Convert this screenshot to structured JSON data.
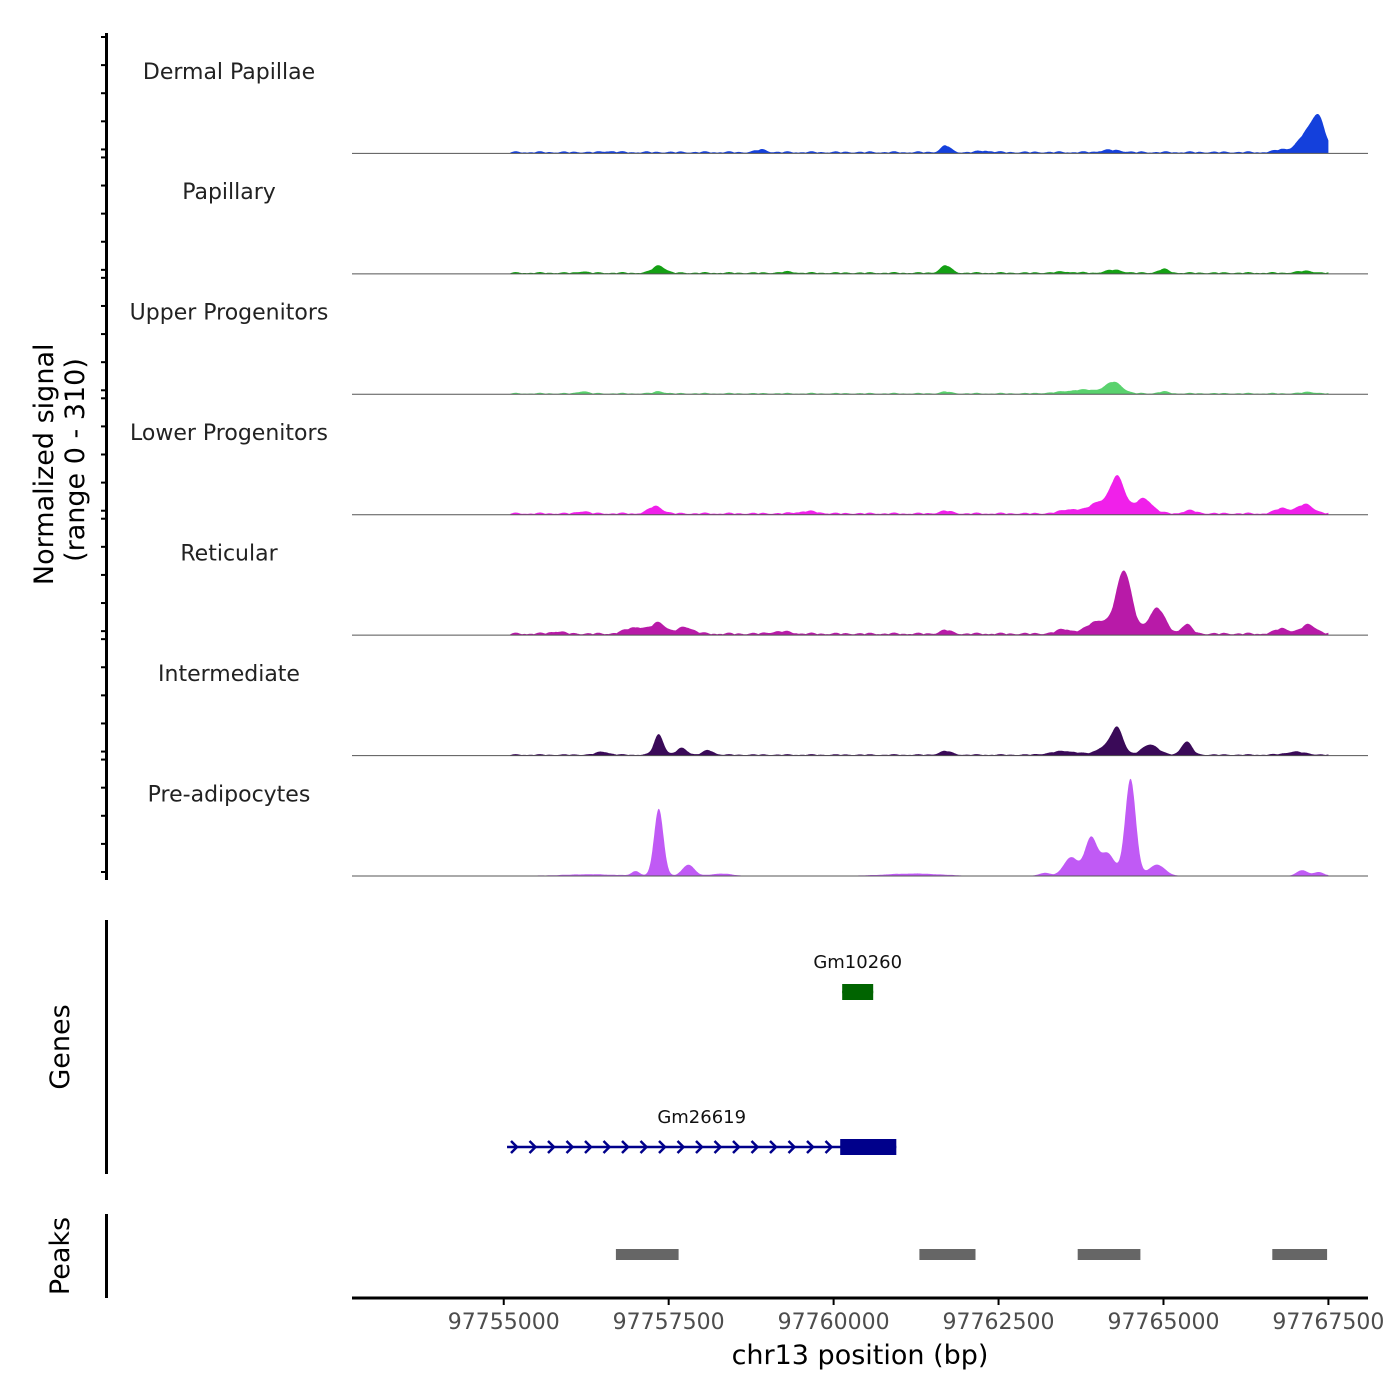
{
  "chart_data": {
    "type": "area",
    "title": "",
    "xlabel": "chr13 position (bp)",
    "xlim": [
      97752700,
      97768100
    ],
    "x_ticks": [
      97755000,
      97757500,
      97760000,
      97762500,
      97765000,
      97767500
    ],
    "x_tick_labels": [
      "97755000",
      "97757500",
      "97760000",
      "97762500",
      "97765000",
      "97767500"
    ],
    "signal_ylabel_line1": "Normalized signal",
    "signal_ylabel_line2": "(range 0 - 310)",
    "ylim": [
      0,
      310
    ],
    "signal_extent": [
      97755100,
      97767500
    ],
    "tracks": [
      {
        "name": "Dermal Papillae",
        "color": "#1440dc",
        "baseline": 6,
        "peaks": [
          [
            97756600,
            3,
            80
          ],
          [
            97758900,
            7,
            80
          ],
          [
            97761700,
            18,
            70
          ],
          [
            97762300,
            4,
            100
          ],
          [
            97764200,
            6,
            150
          ],
          [
            97766800,
            8,
            100
          ],
          [
            97767150,
            45,
            120
          ],
          [
            97767350,
            90,
            100
          ]
        ]
      },
      {
        "name": "Papillary",
        "color": "#14a014",
        "baseline": 5,
        "peaks": [
          [
            97756200,
            4,
            60
          ],
          [
            97757350,
            20,
            90
          ],
          [
            97759300,
            3,
            100
          ],
          [
            97761700,
            20,
            80
          ],
          [
            97763500,
            3,
            150
          ],
          [
            97764250,
            8,
            120
          ],
          [
            97765000,
            10,
            80
          ],
          [
            97767150,
            5,
            120
          ]
        ]
      },
      {
        "name": "Upper Progenitors",
        "color": "#5ad26e",
        "baseline": 4,
        "peaks": [
          [
            97756200,
            6,
            70
          ],
          [
            97757350,
            6,
            70
          ],
          [
            97761700,
            5,
            70
          ],
          [
            97763800,
            10,
            300
          ],
          [
            97764250,
            28,
            120
          ],
          [
            97765000,
            5,
            80
          ],
          [
            97767200,
            4,
            100
          ]
        ]
      },
      {
        "name": "Lower Progenitors",
        "color": "#f020ea",
        "baseline": 6,
        "peaks": [
          [
            97756200,
            6,
            80
          ],
          [
            97757300,
            20,
            100
          ],
          [
            97759600,
            6,
            150
          ],
          [
            97761700,
            7,
            90
          ],
          [
            97763600,
            12,
            150
          ],
          [
            97764000,
            30,
            120
          ],
          [
            97764300,
            100,
            110
          ],
          [
            97764700,
            40,
            130
          ],
          [
            97765400,
            8,
            100
          ],
          [
            97766800,
            15,
            100
          ],
          [
            97767150,
            25,
            120
          ]
        ]
      },
      {
        "name": "Reticular",
        "color": "#b81aa8",
        "baseline": 7,
        "peaks": [
          [
            97755800,
            6,
            100
          ],
          [
            97757000,
            18,
            150
          ],
          [
            97757350,
            30,
            100
          ],
          [
            97757750,
            18,
            120
          ],
          [
            97759200,
            6,
            150
          ],
          [
            97761700,
            10,
            80
          ],
          [
            97763500,
            12,
            120
          ],
          [
            97764000,
            35,
            150
          ],
          [
            97764400,
            170,
            120
          ],
          [
            97764900,
            70,
            120
          ],
          [
            97765350,
            25,
            80
          ],
          [
            97766800,
            15,
            100
          ],
          [
            97767200,
            25,
            110
          ]
        ]
      },
      {
        "name": "Intermediate",
        "color": "#3a0a58",
        "baseline": 4,
        "peaks": [
          [
            97756500,
            8,
            100
          ],
          [
            97757350,
            55,
            70
          ],
          [
            97757700,
            18,
            80
          ],
          [
            97758100,
            12,
            80
          ],
          [
            97761700,
            10,
            90
          ],
          [
            97763500,
            10,
            200
          ],
          [
            97764100,
            20,
            120
          ],
          [
            97764300,
            70,
            90
          ],
          [
            97764800,
            28,
            120
          ],
          [
            97765350,
            35,
            80
          ],
          [
            97767000,
            8,
            150
          ]
        ]
      },
      {
        "name": "Pre-adipocytes",
        "color": "#c05af5",
        "baseline": 1,
        "peaks": [
          [
            97756300,
            4,
            400
          ],
          [
            97757000,
            12,
            60
          ],
          [
            97757350,
            180,
            70
          ],
          [
            97757800,
            30,
            90
          ],
          [
            97758300,
            6,
            150
          ],
          [
            97761200,
            6,
            400
          ],
          [
            97763200,
            8,
            80
          ],
          [
            97763600,
            50,
            110
          ],
          [
            97763900,
            100,
            90
          ],
          [
            97764150,
            60,
            110
          ],
          [
            97764500,
            260,
            80
          ],
          [
            97764900,
            30,
            120
          ],
          [
            97767100,
            15,
            80
          ],
          [
            97767350,
            10,
            80
          ]
        ]
      }
    ],
    "genes_ylabel": "Genes",
    "genes": [
      {
        "name": "Gm10260",
        "start": 97760130,
        "end": 97760600,
        "strand": "",
        "exon": [
          97760130,
          97760600
        ],
        "color": "#006400"
      },
      {
        "name": "Gm26619",
        "start": 97755050,
        "end": 97760950,
        "strand": "+",
        "exon": [
          97760100,
          97760950
        ],
        "color": "#00008b"
      }
    ],
    "peaks_ylabel": "Peaks",
    "peaks": [
      {
        "start": 97756700,
        "end": 97757650
      },
      {
        "start": 97761300,
        "end": 97762150
      },
      {
        "start": 97763700,
        "end": 97764650
      },
      {
        "start": 97766650,
        "end": 97767480
      }
    ],
    "peak_color": "#666666"
  }
}
